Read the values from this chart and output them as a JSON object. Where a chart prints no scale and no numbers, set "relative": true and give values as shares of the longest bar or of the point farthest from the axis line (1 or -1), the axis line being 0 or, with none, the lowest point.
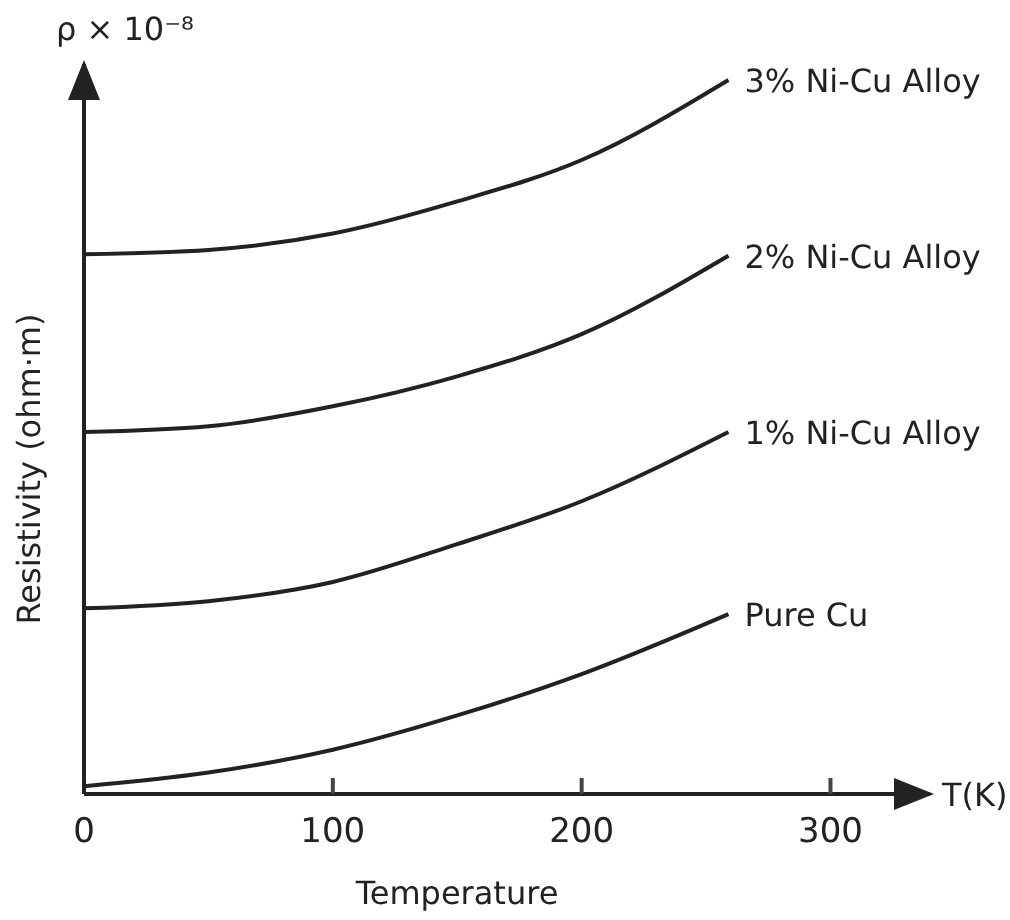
{
  "chart_data": {
    "type": "line",
    "xlabel": "Temperature",
    "ylabel": "Resistivity (ohm·m)",
    "annotations": [
      "ρ × 10⁻⁸",
      "T(K)"
    ],
    "relative": true,
    "xlim": [
      0,
      340
    ],
    "xticks": [
      0,
      100,
      200,
      300
    ],
    "grid": false,
    "marker": "none",
    "line_style": "solid",
    "x": [
      0,
      50,
      100,
      150,
      200,
      259
    ],
    "series": [
      {
        "name": "3% Ni-Cu Alloy",
        "color": "#222222",
        "values": [
          0.756,
          0.762,
          0.785,
          0.83,
          0.888,
          1
        ]
      },
      {
        "name": "2% Ni-Cu Alloy",
        "color": "#222222",
        "values": [
          0.507,
          0.515,
          0.543,
          0.585,
          0.644,
          0.754
        ]
      },
      {
        "name": "1% Ni-Cu Alloy",
        "color": "#222222",
        "values": [
          0.26,
          0.27,
          0.297,
          0.35,
          0.41,
          0.507
        ]
      },
      {
        "name": "Pure Cu",
        "color": "#222222",
        "values": [
          0.011,
          0.03,
          0.062,
          0.11,
          0.168,
          0.252
        ]
      }
    ]
  }
}
